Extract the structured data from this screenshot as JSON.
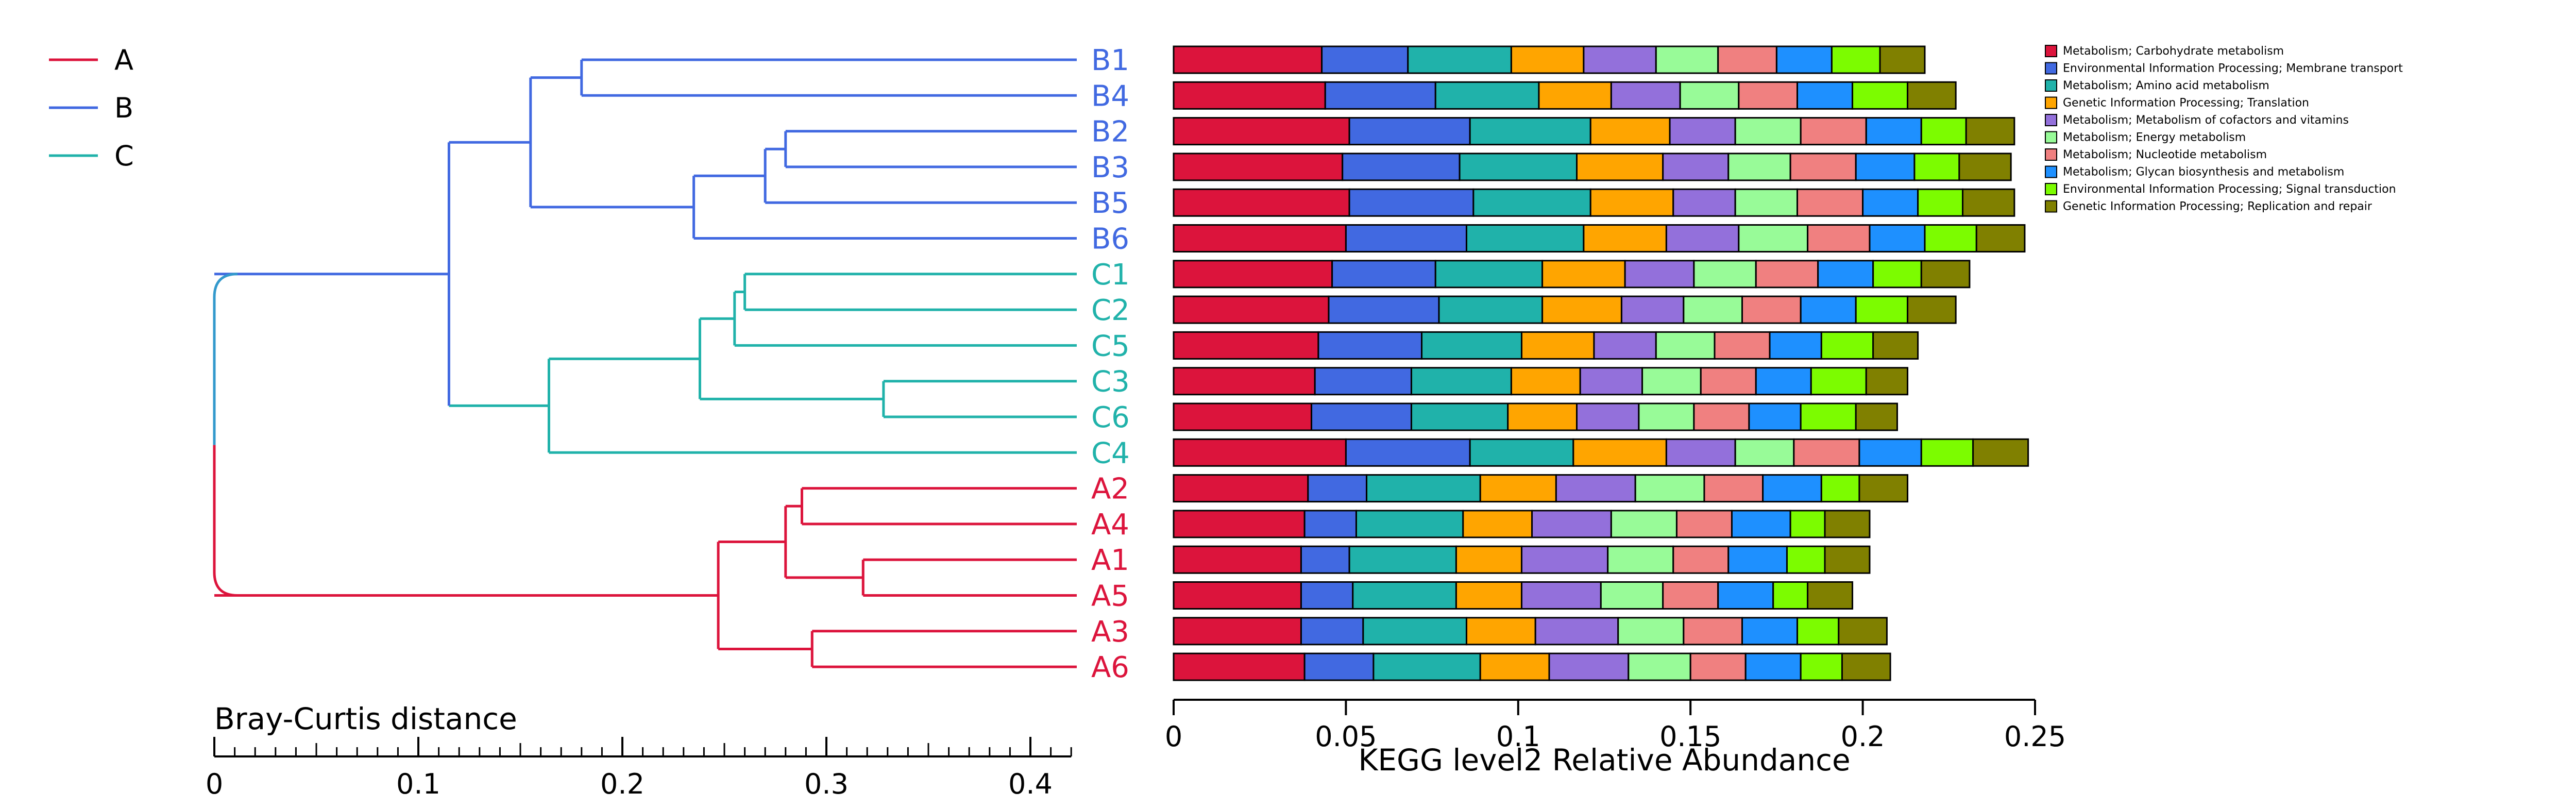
{
  "colors": {
    "A": "#dc143c",
    "B": "#4169e1",
    "C": "#20b2aa",
    "root": "#3399cc"
  },
  "group_legend": {
    "entries": [
      {
        "label": "A",
        "color": "#dc143c"
      },
      {
        "label": "B",
        "color": "#4169e1"
      },
      {
        "label": "C",
        "color": "#20b2aa"
      }
    ]
  },
  "dendrogram": {
    "axis_label": "Bray-Curtis distance",
    "axis_range": [
      0,
      0.42
    ],
    "ticks": [
      "0",
      "0.1",
      "0.2",
      "0.3",
      "0.4"
    ],
    "tick_values": [
      0,
      0.1,
      0.2,
      0.3,
      0.4
    ],
    "leaves": [
      "B1",
      "B4",
      "B2",
      "B3",
      "B5",
      "B6",
      "C1",
      "C2",
      "C5",
      "C3",
      "C6",
      "C4",
      "A2",
      "A4",
      "A1",
      "A5",
      "A3",
      "A6"
    ],
    "merges": [
      {
        "id": "B14",
        "left": "B1",
        "right": "B4",
        "height": 0.18,
        "color": "B"
      },
      {
        "id": "B23",
        "left": "B2",
        "right": "B3",
        "height": 0.28,
        "color": "B"
      },
      {
        "id": "B235",
        "left": "B23",
        "right": "B5",
        "height": 0.27,
        "color": "B"
      },
      {
        "id": "B2356",
        "left": "B235",
        "right": "B6",
        "height": 0.235,
        "color": "B"
      },
      {
        "id": "Ball",
        "left": "B14",
        "right": "B2356",
        "height": 0.155,
        "color": "B"
      },
      {
        "id": "C12",
        "left": "C1",
        "right": "C2",
        "height": 0.26,
        "color": "C"
      },
      {
        "id": "C125",
        "left": "C12",
        "right": "C5",
        "height": 0.255,
        "color": "C"
      },
      {
        "id": "C36",
        "left": "C3",
        "right": "C6",
        "height": 0.328,
        "color": "C"
      },
      {
        "id": "C12536",
        "left": "C125",
        "right": "C36",
        "height": 0.238,
        "color": "C"
      },
      {
        "id": "Call",
        "left": "C12536",
        "right": "C4",
        "height": 0.164,
        "color": "C"
      },
      {
        "id": "BC",
        "left": "Ball",
        "right": "Call",
        "height": 0.115,
        "color": "B"
      },
      {
        "id": "A24",
        "left": "A2",
        "right": "A4",
        "height": 0.288,
        "color": "A"
      },
      {
        "id": "A15",
        "left": "A1",
        "right": "A5",
        "height": 0.318,
        "color": "A"
      },
      {
        "id": "A2415",
        "left": "A24",
        "right": "A15",
        "height": 0.28,
        "color": "A"
      },
      {
        "id": "A36",
        "left": "A3",
        "right": "A6",
        "height": 0.293,
        "color": "A"
      },
      {
        "id": "Aall",
        "left": "A2415",
        "right": "A36",
        "height": 0.247,
        "color": "A"
      },
      {
        "id": "root",
        "left": "BC",
        "right": "Aall",
        "height": 0.0,
        "color": "root"
      }
    ]
  },
  "chart_data": {
    "type": "bar",
    "orientation": "horizontal",
    "stacked": true,
    "xlabel": "KEGG level2 Relative Abundance",
    "xlim": [
      0,
      0.25
    ],
    "x_ticks": [
      "0",
      "0.05",
      "0.1",
      "0.15",
      "0.2",
      "0.25"
    ],
    "x_tick_values": [
      0,
      0.05,
      0.1,
      0.15,
      0.2,
      0.25
    ],
    "categories": [
      "B1",
      "B4",
      "B2",
      "B3",
      "B5",
      "B6",
      "C1",
      "C2",
      "C5",
      "C3",
      "C6",
      "C4",
      "A2",
      "A4",
      "A1",
      "A5",
      "A3",
      "A6"
    ],
    "category_groups": [
      "B",
      "B",
      "B",
      "B",
      "B",
      "B",
      "C",
      "C",
      "C",
      "C",
      "C",
      "C",
      "A",
      "A",
      "A",
      "A",
      "A",
      "A"
    ],
    "series": [
      {
        "name": "Metabolism; Carbohydrate metabolism",
        "color": "#dc143c",
        "values": [
          0.043,
          0.044,
          0.051,
          0.049,
          0.051,
          0.05,
          0.046,
          0.045,
          0.042,
          0.041,
          0.04,
          0.05,
          0.039,
          0.038,
          0.037,
          0.037,
          0.037,
          0.038
        ]
      },
      {
        "name": "Environmental Information Processing; Membrane transport",
        "color": "#4169e1",
        "values": [
          0.025,
          0.032,
          0.035,
          0.034,
          0.036,
          0.035,
          0.03,
          0.032,
          0.03,
          0.028,
          0.029,
          0.036,
          0.017,
          0.015,
          0.014,
          0.015,
          0.018,
          0.02
        ]
      },
      {
        "name": "Metabolism; Amino acid metabolism",
        "color": "#20b2aa",
        "values": [
          0.03,
          0.03,
          0.035,
          0.034,
          0.034,
          0.034,
          0.031,
          0.03,
          0.029,
          0.029,
          0.028,
          0.03,
          0.033,
          0.031,
          0.031,
          0.03,
          0.03,
          0.031
        ]
      },
      {
        "name": "Genetic Information Processing; Translation",
        "color": "#ffa500",
        "values": [
          0.021,
          0.021,
          0.023,
          0.025,
          0.024,
          0.024,
          0.024,
          0.023,
          0.021,
          0.02,
          0.02,
          0.027,
          0.022,
          0.02,
          0.019,
          0.019,
          0.02,
          0.02
        ]
      },
      {
        "name": "Metabolism; Metabolism of cofactors and vitamins",
        "color": "#9370db",
        "values": [
          0.021,
          0.02,
          0.019,
          0.019,
          0.018,
          0.021,
          0.02,
          0.018,
          0.018,
          0.018,
          0.018,
          0.02,
          0.023,
          0.023,
          0.025,
          0.023,
          0.024,
          0.023
        ]
      },
      {
        "name": "Metabolism; Energy metabolism",
        "color": "#98fb98",
        "values": [
          0.018,
          0.017,
          0.019,
          0.018,
          0.018,
          0.02,
          0.018,
          0.017,
          0.017,
          0.017,
          0.016,
          0.017,
          0.02,
          0.019,
          0.019,
          0.018,
          0.019,
          0.018
        ]
      },
      {
        "name": "Metabolism; Nucleotide metabolism",
        "color": "#f08080",
        "values": [
          0.017,
          0.017,
          0.019,
          0.019,
          0.019,
          0.018,
          0.018,
          0.017,
          0.016,
          0.016,
          0.016,
          0.019,
          0.017,
          0.016,
          0.016,
          0.016,
          0.017,
          0.016
        ]
      },
      {
        "name": "Metabolism; Glycan biosynthesis and metabolism",
        "color": "#1e90ff",
        "values": [
          0.016,
          0.016,
          0.016,
          0.017,
          0.016,
          0.016,
          0.016,
          0.016,
          0.015,
          0.016,
          0.015,
          0.018,
          0.017,
          0.017,
          0.017,
          0.016,
          0.016,
          0.016
        ]
      },
      {
        "name": "Environmental Information Processing; Signal transduction",
        "color": "#7cfc00",
        "values": [
          0.014,
          0.016,
          0.013,
          0.013,
          0.013,
          0.015,
          0.014,
          0.015,
          0.015,
          0.016,
          0.016,
          0.015,
          0.011,
          0.01,
          0.011,
          0.01,
          0.012,
          0.012
        ]
      },
      {
        "name": "Genetic Information Processing; Replication and repair",
        "color": "#808000",
        "values": [
          0.013,
          0.014,
          0.014,
          0.015,
          0.015,
          0.014,
          0.014,
          0.014,
          0.013,
          0.012,
          0.012,
          0.016,
          0.014,
          0.013,
          0.013,
          0.013,
          0.014,
          0.014
        ]
      }
    ]
  }
}
